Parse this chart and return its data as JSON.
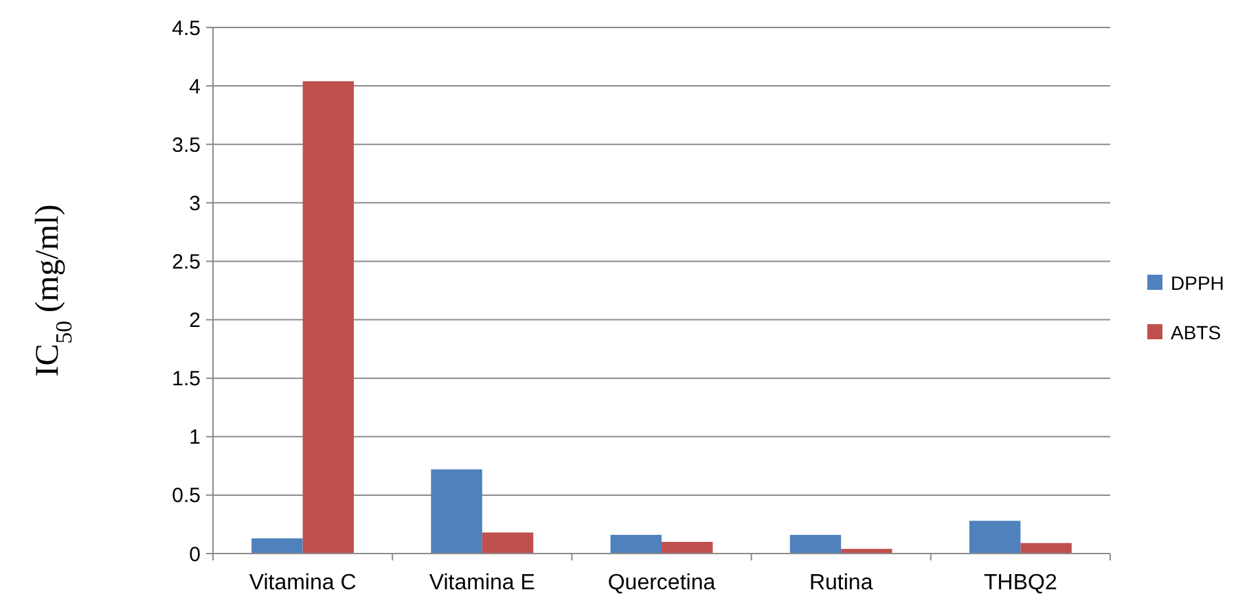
{
  "chart_data": {
    "type": "bar",
    "ylabel": "IC$_{50}$ (mg/ml)",
    "categories": [
      "Vitamina C",
      "Vitamina E",
      "Quercetina",
      "Rutina",
      "THBQ2"
    ],
    "series": [
      {
        "name": "DPPH",
        "color": "#4f81bd",
        "values": [
          0.13,
          0.72,
          0.16,
          0.16,
          0.28
        ]
      },
      {
        "name": "ABTS",
        "color": "#c0504d",
        "values": [
          4.04,
          0.18,
          0.1,
          0.04,
          0.09
        ]
      }
    ],
    "ylim": [
      0,
      4.5
    ],
    "yticks": [
      0,
      0.5,
      1,
      1.5,
      2,
      2.5,
      3,
      3.5,
      4,
      4.5
    ],
    "grid": "y",
    "legend": "right"
  }
}
